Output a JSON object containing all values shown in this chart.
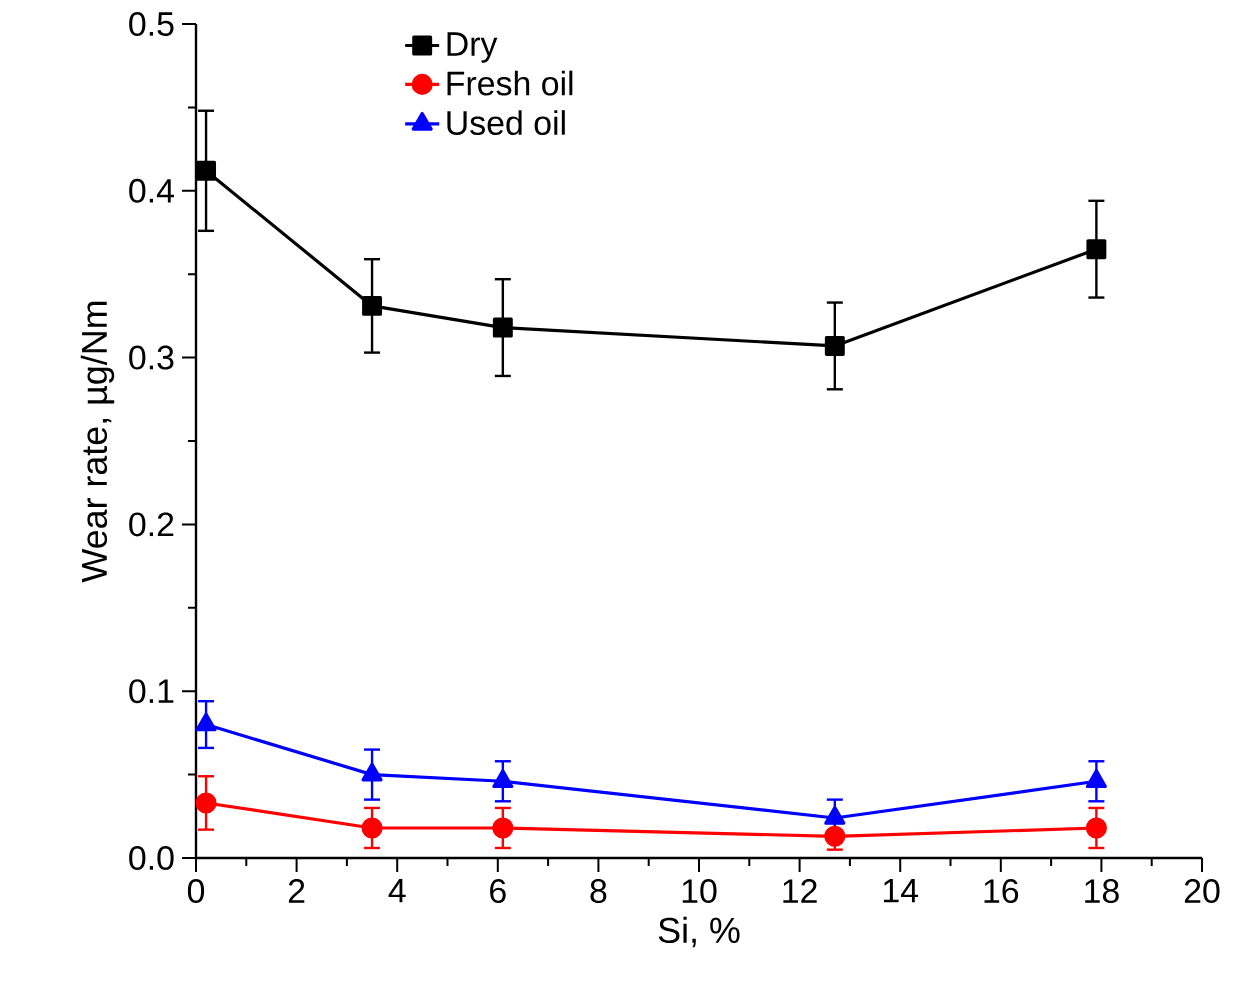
{
  "chart_data": {
    "type": "line",
    "xlabel": "Si, %",
    "ylabel": "Wear rate, µg/Nm",
    "x": [
      0.2,
      3.5,
      6.1,
      12.7,
      17.9
    ],
    "series": [
      {
        "name": "Dry",
        "color": "#000000",
        "marker": "square",
        "values": [
          0.412,
          0.331,
          0.318,
          0.307,
          0.365
        ],
        "errors": [
          0.036,
          0.028,
          0.029,
          0.026,
          0.029
        ]
      },
      {
        "name": "Fresh oil",
        "color": "#ff0000",
        "marker": "circle",
        "values": [
          0.033,
          0.018,
          0.018,
          0.013,
          0.018
        ],
        "errors": [
          0.016,
          0.012,
          0.012,
          0.008,
          0.012
        ]
      },
      {
        "name": "Used oil",
        "color": "#0000ff",
        "marker": "triangle",
        "values": [
          0.08,
          0.05,
          0.046,
          0.024,
          0.046
        ],
        "errors": [
          0.014,
          0.015,
          0.012,
          0.011,
          0.012
        ]
      }
    ],
    "xlim": [
      0,
      20
    ],
    "xticks": [
      0,
      2,
      4,
      6,
      8,
      10,
      12,
      14,
      16,
      18,
      20
    ],
    "ylim": [
      0,
      0.5
    ],
    "yticks": [
      {
        "value": 0,
        "label": "0.0"
      },
      0.1,
      0.2,
      0.3,
      0.4,
      0.5
    ],
    "grid": false,
    "legend": "top left",
    "line_style": "solid"
  }
}
